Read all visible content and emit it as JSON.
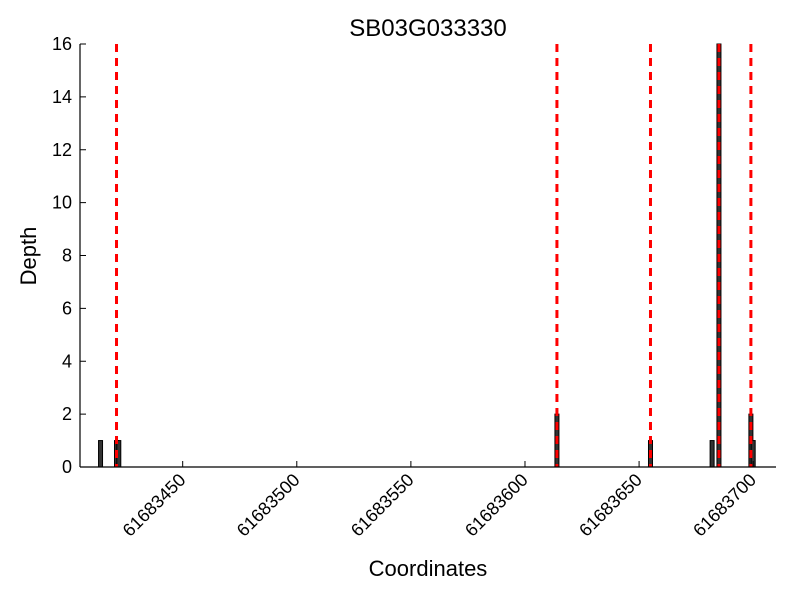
{
  "chart_data": {
    "type": "bar",
    "title": "SB03G033330",
    "xlabel": "Coordinates",
    "ylabel": "Depth",
    "xlim": [
      61683405,
      61683710
    ],
    "ylim": [
      0,
      16
    ],
    "x_ticks": [
      61683450,
      61683500,
      61683550,
      61683600,
      61683650,
      61683700
    ],
    "y_ticks": [
      0,
      2,
      4,
      6,
      8,
      10,
      12,
      14,
      16
    ],
    "grid": false,
    "bars": [
      {
        "x": 61683414,
        "value": 1
      },
      {
        "x": 61683421,
        "value": 1
      },
      {
        "x": 61683422,
        "value": 1
      },
      {
        "x": 61683614,
        "value": 2
      },
      {
        "x": 61683655,
        "value": 1
      },
      {
        "x": 61683682,
        "value": 1
      },
      {
        "x": 61683685,
        "value": 16
      },
      {
        "x": 61683699,
        "value": 2
      },
      {
        "x": 61683700,
        "value": 1
      }
    ],
    "markers": {
      "style": "dashed",
      "color": "#ff0000",
      "x": [
        61683421,
        61683614,
        61683655,
        61683685,
        61683699
      ]
    },
    "bar_color": "#333333"
  }
}
